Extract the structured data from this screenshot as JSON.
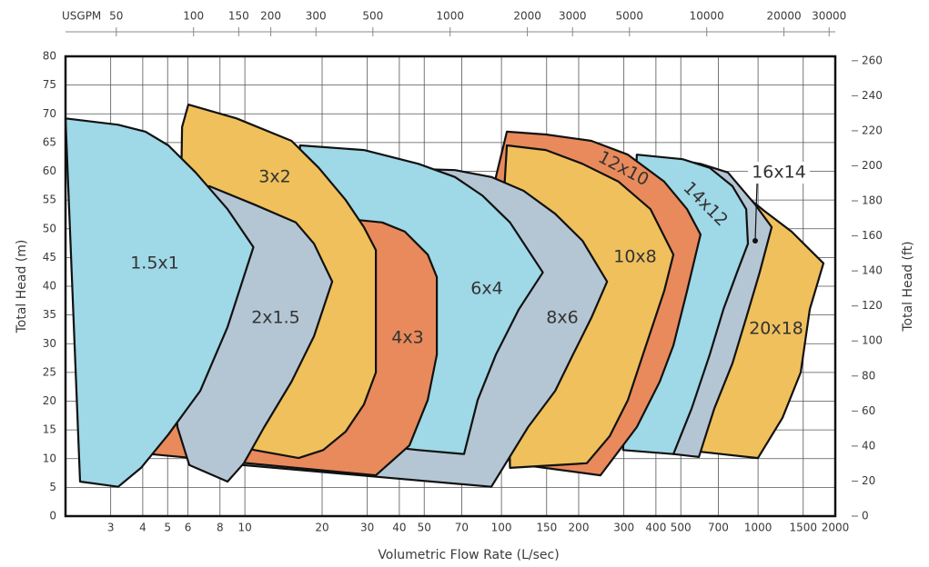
{
  "chart_data": {
    "type": "region",
    "x_label": "Volumetric Flow Rate (L/sec)",
    "y_label": "Total Head (m)",
    "y2_label": "Total Head (ft)",
    "x2_label": "USGPM",
    "log_x": true,
    "grid": true,
    "xlim": [
      2,
      2000
    ],
    "xticks": [
      3,
      4,
      5,
      6,
      8,
      10,
      20,
      30,
      40,
      50,
      70,
      100,
      150,
      200,
      300,
      400,
      500,
      700,
      1000,
      1500,
      2000
    ],
    "x2lim": [
      31.7,
      31700
    ],
    "x2ticks": [
      50,
      100,
      150,
      200,
      300,
      500,
      1000,
      2000,
      3000,
      5000,
      10000,
      20000,
      30000
    ],
    "ylim": [
      0,
      80
    ],
    "yticks": [
      0,
      5,
      10,
      15,
      20,
      25,
      30,
      35,
      40,
      45,
      50,
      55,
      60,
      65,
      70,
      75,
      80
    ],
    "y2lim": [
      0,
      262.5
    ],
    "y2ticks": [
      0,
      20,
      40,
      60,
      80,
      100,
      120,
      140,
      160,
      180,
      200,
      220,
      240,
      260
    ],
    "series": [
      {
        "name": "1.5x1",
        "color": "#9fd8e6",
        "x": [
          2.0,
          3.21,
          4.1,
          5.03,
          6.43,
          8.56,
          10.8,
          8.56,
          6.7,
          5.03,
          3.94,
          3.21,
          2.28
        ],
        "y": [
          69.2,
          68.1,
          66.9,
          64.5,
          59.8,
          53.4,
          46.8,
          32.9,
          21.8,
          14.2,
          8.4,
          5.1,
          6.0
        ]
      },
      {
        "name": "2x1.5",
        "color": "#b4c6d4",
        "x": [
          6.43,
          7.27,
          10.9,
          15.8,
          18.6,
          21.9,
          18.6,
          15.2,
          11.9,
          9.91,
          8.56,
          6.07,
          5.46,
          5.24,
          5.69
        ],
        "y": [
          56.6,
          57.4,
          54.2,
          51.1,
          47.4,
          40.8,
          31.3,
          23.4,
          15.5,
          9.2,
          6.0,
          8.9,
          15.5,
          26.6,
          42.4
        ]
      },
      {
        "name": "3x2",
        "color": "#efc05c",
        "x": [
          6.02,
          9.28,
          15.2,
          19.4,
          24.7,
          29.1,
          32.4,
          32.4,
          29.1,
          24.7,
          20.2,
          16.2,
          10.9,
          5.46,
          5.69
        ],
        "y": [
          71.6,
          69.2,
          65.3,
          60.6,
          55.0,
          50.3,
          46.3,
          25.0,
          19.4,
          14.7,
          11.5,
          10.1,
          11.5,
          15.5,
          67.7
        ]
      },
      {
        "name": "4x3",
        "color": "#e88a5b",
        "x": [
          4.27,
          7.27,
          28.0,
          34.3,
          42.0,
          51.6,
          56.0,
          56.0,
          51.6,
          43.8,
          32.4
        ],
        "y": [
          10.8,
          42.4,
          51.5,
          51.1,
          49.5,
          45.5,
          41.6,
          28.1,
          20.2,
          12.3,
          7.1
        ]
      },
      {
        "name": "6x4",
        "color": "#9fd8e6",
        "x": [
          16.4,
          29.1,
          47.5,
          65.9,
          84.2,
          108,
          145,
          117,
          95.1,
          80.8,
          71.5,
          47.5,
          32.4,
          16.4
        ],
        "y": [
          64.5,
          63.7,
          61.3,
          59.0,
          55.8,
          51.1,
          42.4,
          36.0,
          28.1,
          20.2,
          10.8,
          11.5,
          12.3,
          58.2
        ]
      },
      {
        "name": "8x6",
        "color": "#b4c6d4",
        "x": [
          9.67,
          47.5,
          65.9,
          91.3,
          122,
          162,
          207,
          258,
          224,
          190,
          162,
          127,
          91.3
        ],
        "y": [
          8.9,
          60.4,
          60.2,
          59.0,
          56.6,
          52.6,
          47.9,
          40.8,
          34.5,
          28.1,
          21.8,
          15.5,
          5.1
        ]
      },
      {
        "name": "10x8",
        "color": "#efc05c",
        "x": [
          105,
          149,
          207,
          286,
          381,
          468,
          431,
          366,
          311,
          264,
          215,
          108,
          103
        ],
        "y": [
          64.5,
          63.7,
          61.3,
          58.2,
          53.4,
          45.5,
          39.2,
          29.7,
          20.2,
          13.9,
          9.2,
          8.4,
          58.2
        ]
      },
      {
        "name": "12x10",
        "color": "#e88a5b",
        "x": [
          105,
          149,
          224,
          311,
          431,
          529,
          597,
          529,
          468,
          414,
          337,
          243,
          108,
          95.1
        ],
        "y": [
          66.9,
          66.4,
          65.3,
          62.9,
          58.2,
          53.4,
          49.0,
          39.2,
          29.7,
          23.4,
          15.5,
          7.1,
          9.2,
          59.0
        ]
      },
      {
        "name": "14x12",
        "color": "#9fd8e6",
        "x": [
          337,
          508,
          648,
          795,
          899,
          913,
          828,
          733,
          648,
          551,
          468,
          298
        ],
        "y": [
          62.9,
          62.1,
          60.6,
          57.4,
          53.4,
          47.4,
          42.4,
          36.0,
          28.1,
          18.7,
          10.8,
          11.5
        ]
      },
      {
        "name": "16x14",
        "color": "#b4c6d4",
        "x": [
          468,
          597,
          763,
          975,
          1130,
          1015,
          899,
          795,
          675,
          588,
          468
        ],
        "y": [
          62.1,
          61.3,
          59.8,
          54.2,
          50.3,
          42.4,
          34.5,
          26.6,
          18.7,
          10.3,
          10.8
        ]
      },
      {
        "name": "20x18",
        "color": "#efc05c",
        "x": [
          763,
          1058,
          1351,
          1799,
          1591,
          1466,
          1246,
          999,
          597
        ],
        "y": [
          58.2,
          53.1,
          49.5,
          44.0,
          36.0,
          25.0,
          17.1,
          10.1,
          11.2
        ]
      }
    ]
  }
}
